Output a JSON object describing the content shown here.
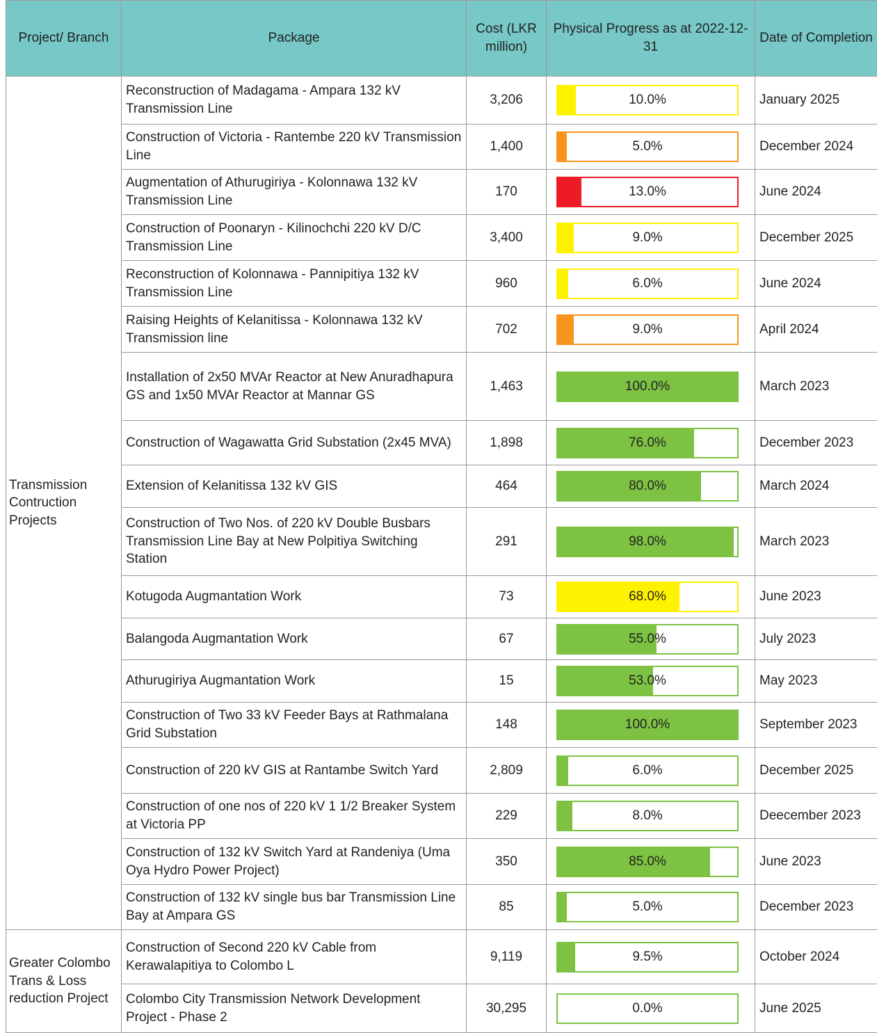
{
  "header": [
    "Project/ Branch",
    "Package",
    "Cost (LKR million)",
    "Physical Progress as at 2022-12-31",
    "Date of Completion"
  ],
  "groups": [
    {
      "name": "Transmission Contruction Projects",
      "rows": [
        {
          "package": "Reconstruction of Madagama - Ampara 132 kV Transmission Line",
          "cost": "3,206",
          "progress": 10,
          "progress_label": "10.0%",
          "color": "#fff200",
          "completion": "January 2025"
        },
        {
          "package": "Construction of Victoria - Rantembe 220 kV Transmission Line",
          "cost": "1,400",
          "progress": 5,
          "progress_label": "5.0%",
          "color": "#f7941d",
          "completion": "December 2024"
        },
        {
          "package": "Augmentation of Athurugiriya - Kolonnawa 132 kV Transmission Line",
          "cost": "170",
          "progress": 13,
          "progress_label": "13.0%",
          "color": "#ed1c24",
          "completion": "June 2024"
        },
        {
          "package": "Construction of Poonaryn - Kilinochchi 220 kV D/C Transmission Line",
          "cost": "3,400",
          "progress": 9,
          "progress_label": "9.0%",
          "color": "#fff200",
          "completion": "December 2025"
        },
        {
          "package": "Reconstruction of Kolonnawa - Pannipitiya 132 kV Transmission Line",
          "cost": "960",
          "progress": 6,
          "progress_label": "6.0%",
          "color": "#fff200",
          "completion": "June 2024"
        },
        {
          "package": "Raising Heights of Kelanitissa - Kolonnawa 132 kV Transmission line",
          "cost": "702",
          "progress": 9,
          "progress_label": "9.0%",
          "color": "#f7941d",
          "completion": "April 2024"
        },
        {
          "package": "Installation of 2x50 MVAr Reactor at New Anuradhapura GS and 1x50 MVAr Reactor at Mannar GS",
          "cost": "1,463",
          "progress": 100,
          "progress_label": "100.0%",
          "color": "#7dc242",
          "completion": "March 2023"
        },
        {
          "package": "Construction of Wagawatta Grid Substation (2x45 MVA)",
          "cost": "1,898",
          "progress": 76,
          "progress_label": "76.0%",
          "color": "#7dc242",
          "completion": "December 2023"
        },
        {
          "package": "Extension of Kelanitissa 132 kV GIS",
          "cost": "464",
          "progress": 80,
          "progress_label": "80.0%",
          "color": "#7dc242",
          "completion": "March 2024"
        },
        {
          "package": "Construction of Two Nos. of 220 kV Double Busbars Transmission Line Bay at New Polpitiya Switching Station",
          "cost": "291",
          "progress": 98,
          "progress_label": "98.0%",
          "color": "#7dc242",
          "completion": "March 2023"
        },
        {
          "package": "Kotugoda Augmantation Work",
          "cost": "73",
          "progress": 68,
          "progress_label": "68.0%",
          "color": "#fff200",
          "completion": "June 2023"
        },
        {
          "package": "Balangoda Augmantation Work",
          "cost": "67",
          "progress": 55,
          "progress_label": "55.0%",
          "color": "#7dc242",
          "completion": "July 2023"
        },
        {
          "package": "Athurugiriya Augmantation  Work",
          "cost": "15",
          "progress": 53,
          "progress_label": "53.0%",
          "color": "#7dc242",
          "completion": "May 2023"
        },
        {
          "package": "Construction of Two 33 kV Feeder Bays at Rathmalana Grid Substation",
          "cost": "148",
          "progress": 100,
          "progress_label": "100.0%",
          "color": "#7dc242",
          "completion": "September 2023"
        },
        {
          "package": "Construction of 220 kV GIS at Rantambe Switch Yard",
          "cost": "2,809",
          "progress": 6,
          "progress_label": "6.0%",
          "color": "#7dc242",
          "completion": "December 2025"
        },
        {
          "package": "Construction of one nos of 220 kV 1 1/2 Breaker System at Victoria PP",
          "cost": "229",
          "progress": 8,
          "progress_label": "8.0%",
          "color": "#7dc242",
          "completion": "Deecember 2023"
        },
        {
          "package": "Construction of 132 kV Switch Yard at Randeniya (Uma Oya Hydro Power Project)",
          "cost": "350",
          "progress": 85,
          "progress_label": "85.0%",
          "color": "#7dc242",
          "completion": "June 2023"
        },
        {
          "package": "Construction of 132 kV single bus bar Transmission Line Bay at Ampara GS",
          "cost": "85",
          "progress": 5,
          "progress_label": "5.0%",
          "color": "#7dc242",
          "completion": "December 2023"
        }
      ]
    },
    {
      "name": "Greater Colombo Trans & Loss reduction Project",
      "rows": [
        {
          "package": "Construction of Second 220 kV Cable from Kerawalapitiya to Colombo L",
          "cost": "9,119",
          "progress": 9.5,
          "progress_label": "9.5%",
          "color": "#7dc242",
          "completion": "October 2024"
        },
        {
          "package": "Colombo City Transmission Network Development Project - Phase 2",
          "cost": "30,295",
          "progress": 0,
          "progress_label": "0.0%",
          "color": "#7dc242",
          "completion": "June 2025"
        }
      ]
    }
  ]
}
